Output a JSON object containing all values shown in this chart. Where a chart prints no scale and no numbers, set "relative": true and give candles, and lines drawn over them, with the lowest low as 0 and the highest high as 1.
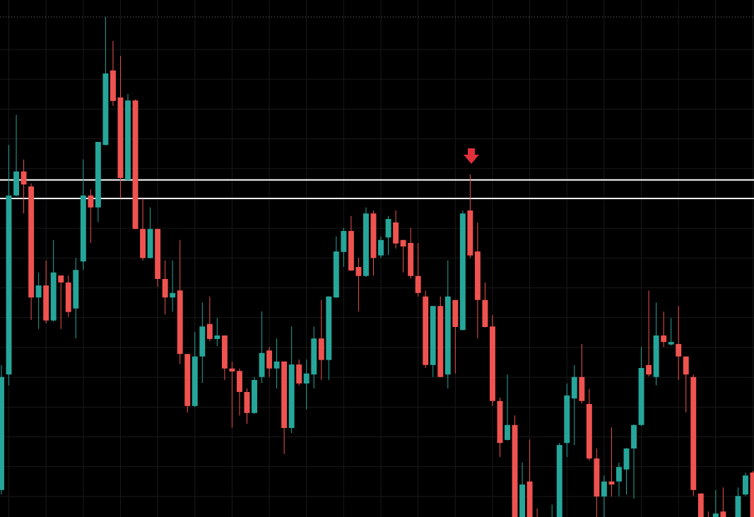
{
  "chart_data": {
    "type": "candlestick",
    "relative": true,
    "grid": true,
    "categories": [
      null,
      null,
      null,
      null,
      null,
      null,
      null,
      null,
      null,
      null,
      null,
      null,
      null,
      null,
      null,
      null,
      null,
      null,
      null,
      null,
      null,
      null,
      null,
      null,
      null,
      null,
      null,
      null,
      null,
      null,
      null,
      null,
      null,
      null,
      null,
      null,
      null,
      null,
      null,
      null,
      null,
      null,
      null,
      null,
      null,
      null,
      null,
      null,
      null,
      null,
      null,
      null,
      null,
      null,
      null,
      null,
      null,
      null,
      null,
      null,
      null,
      null,
      null,
      null,
      null,
      null,
      null,
      null,
      null,
      null,
      null,
      null,
      null,
      null,
      null,
      null,
      null,
      null,
      null,
      null,
      null,
      null,
      null,
      null,
      null,
      null,
      null,
      null,
      null,
      null,
      null,
      null,
      null,
      null,
      null,
      null,
      null,
      null,
      null,
      null,
      null,
      null
    ],
    "ohlc": [
      [
        0.054,
        0.304,
        0.045,
        0.28
      ],
      [
        0.285,
        0.744,
        0.263,
        0.643
      ],
      [
        0.643,
        0.804,
        0.641,
        0.691
      ],
      [
        0.691,
        0.715,
        0.607,
        0.665
      ],
      [
        0.661,
        0.667,
        0.394,
        0.439
      ],
      [
        0.439,
        0.489,
        0.376,
        0.463
      ],
      [
        0.463,
        0.513,
        0.387,
        0.393
      ],
      [
        0.393,
        0.554,
        0.391,
        0.489
      ],
      [
        0.483,
        0.483,
        0.376,
        0.469
      ],
      [
        0.469,
        0.483,
        0.4,
        0.41
      ],
      [
        0.417,
        0.518,
        0.357,
        0.494
      ],
      [
        0.511,
        0.715,
        0.494,
        0.643
      ],
      [
        0.643,
        0.655,
        0.548,
        0.619
      ],
      [
        0.619,
        0.75,
        0.59,
        0.75
      ],
      [
        0.744,
        1.0,
        0.743,
        0.887
      ],
      [
        0.893,
        0.952,
        0.822,
        0.832
      ],
      [
        0.839,
        0.922,
        0.637,
        0.678
      ],
      [
        0.674,
        0.846,
        0.672,
        0.833
      ],
      [
        0.833,
        0.835,
        0.576,
        0.576
      ],
      [
        0.576,
        0.637,
        0.513,
        0.518
      ],
      [
        0.518,
        0.619,
        0.517,
        0.576
      ],
      [
        0.576,
        0.576,
        0.46,
        0.476
      ],
      [
        0.476,
        0.513,
        0.405,
        0.439
      ],
      [
        0.439,
        0.513,
        0.411,
        0.448
      ],
      [
        0.453,
        0.554,
        0.306,
        0.326
      ],
      [
        0.326,
        0.326,
        0.209,
        0.222
      ],
      [
        0.222,
        0.37,
        0.22,
        0.321
      ],
      [
        0.321,
        0.429,
        0.268,
        0.381
      ],
      [
        0.386,
        0.441,
        0.352,
        0.356
      ],
      [
        0.356,
        0.398,
        0.342,
        0.363
      ],
      [
        0.363,
        0.363,
        0.274,
        0.297
      ],
      [
        0.297,
        0.311,
        0.179,
        0.291
      ],
      [
        0.292,
        0.297,
        0.203,
        0.25
      ],
      [
        0.25,
        0.257,
        0.186,
        0.208
      ],
      [
        0.208,
        0.28,
        0.206,
        0.274
      ],
      [
        0.28,
        0.411,
        0.268,
        0.328
      ],
      [
        0.333,
        0.34,
        0.28,
        0.297
      ],
      [
        0.297,
        0.357,
        0.257,
        0.311
      ],
      [
        0.311,
        0.311,
        0.126,
        0.178
      ],
      [
        0.178,
        0.381,
        0.168,
        0.305
      ],
      [
        0.305,
        0.315,
        0.263,
        0.267
      ],
      [
        0.267,
        0.315,
        0.215,
        0.287
      ],
      [
        0.285,
        0.381,
        0.257,
        0.357
      ],
      [
        0.357,
        0.434,
        0.274,
        0.314
      ],
      [
        0.314,
        0.441,
        0.274,
        0.441
      ],
      [
        0.439,
        0.561,
        0.438,
        0.531
      ],
      [
        0.53,
        0.578,
        0.5,
        0.572
      ],
      [
        0.572,
        0.602,
        0.492,
        0.493
      ],
      [
        0.5,
        0.518,
        0.411,
        0.482
      ],
      [
        0.482,
        0.619,
        0.48,
        0.607
      ],
      [
        0.607,
        0.613,
        0.483,
        0.518
      ],
      [
        0.523,
        0.561,
        0.518,
        0.554
      ],
      [
        0.559,
        0.602,
        0.524,
        0.596
      ],
      [
        0.589,
        0.613,
        0.537,
        0.547
      ],
      [
        0.554,
        0.554,
        0.489,
        0.541
      ],
      [
        0.548,
        0.578,
        0.477,
        0.482
      ],
      [
        0.482,
        0.548,
        0.441,
        0.448
      ],
      [
        0.441,
        0.453,
        0.298,
        0.304
      ],
      [
        0.304,
        0.422,
        0.28,
        0.422
      ],
      [
        0.422,
        0.441,
        0.28,
        0.28
      ],
      [
        0.285,
        0.513,
        0.257,
        0.441
      ],
      [
        0.434,
        0.434,
        0.287,
        0.38
      ],
      [
        0.374,
        0.613,
        0.373,
        0.607
      ],
      [
        0.613,
        0.685,
        0.518,
        0.523
      ],
      [
        0.531,
        0.589,
        0.357,
        0.434
      ],
      [
        0.434,
        0.469,
        0.379,
        0.38
      ],
      [
        0.381,
        0.404,
        0.222,
        0.232
      ],
      [
        0.232,
        0.239,
        0.12,
        0.148
      ],
      [
        0.154,
        0.285,
        0.153,
        0.184
      ],
      [
        0.184,
        0.203,
        0,
        0
      ],
      [
        0,
        0.109,
        0,
        0.065
      ],
      [
        0.071,
        0.155,
        0,
        0
      ],
      [
        0,
        0.017,
        0,
        0
      ],
      null,
      [
        0,
        0.025,
        0,
        0
      ],
      [
        0,
        0.148,
        0,
        0.144
      ],
      [
        0.148,
        0.267,
        0.12,
        0.243
      ],
      [
        0.237,
        0.304,
        0.144,
        0.28
      ],
      [
        0.28,
        0.346,
        0.227,
        0.232
      ],
      [
        0.226,
        0.256,
        0.113,
        0.117
      ],
      [
        0.117,
        0.137,
        0,
        0.041
      ],
      [
        0.041,
        0.083,
        0,
        0.071
      ],
      [
        0.071,
        0.179,
        0.041,
        0.065
      ],
      [
        0.071,
        0.109,
        0.041,
        0.1
      ],
      [
        0.095,
        0.138,
        0.045,
        0.137
      ],
      [
        0.137,
        0.185,
        0.037,
        0.184
      ],
      [
        0.184,
        0.34,
        0.182,
        0.298
      ],
      [
        0.304,
        0.453,
        0.281,
        0.285
      ],
      [
        0.28,
        0.429,
        0.263,
        0.363
      ],
      [
        0.363,
        0.411,
        0.34,
        0.35
      ],
      [
        0.345,
        0.398,
        0.343,
        0.35
      ],
      [
        0.346,
        0.422,
        0.274,
        0.321
      ],
      [
        0.321,
        0.321,
        0.209,
        0.285
      ],
      [
        0.28,
        0.285,
        0.042,
        0.054
      ],
      [
        0.047,
        0.047,
        0,
        0
      ],
      [
        0,
        0.011,
        0,
        0
      ],
      [
        0,
        0.054,
        0,
        0.007
      ],
      [
        0.011,
        0.059,
        0,
        0
      ],
      null,
      [
        0,
        0.059,
        0,
        0.042
      ],
      [
        0.045,
        0.089,
        0.042,
        0.083
      ],
      [
        0.089,
        0.092,
        0,
        0
      ]
    ],
    "colors": [
      "#26a69a",
      "#26a69a",
      "#26a69a",
      "#ef5350",
      "#ef5350",
      "#26a69a",
      "#ef5350",
      "#26a69a",
      "#ef5350",
      "#ef5350",
      "#26a69a",
      "#26a69a",
      "#ef5350",
      "#26a69a",
      "#26a69a",
      "#ef5350",
      "#ef5350",
      "#26a69a",
      "#ef5350",
      "#ef5350",
      "#26a69a",
      "#ef5350",
      "#ef5350",
      "#26a69a",
      "#ef5350",
      "#ef5350",
      "#26a69a",
      "#26a69a",
      "#ef5350",
      "#26a69a",
      "#ef5350",
      "#ef5350",
      "#ef5350",
      "#ef5350",
      "#26a69a",
      "#26a69a",
      "#ef5350",
      "#26a69a",
      "#ef5350",
      "#26a69a",
      "#ef5350",
      "#26a69a",
      "#26a69a",
      "#ef5350",
      "#26a69a",
      "#26a69a",
      "#26a69a",
      "#ef5350",
      "#ef5350",
      "#26a69a",
      "#ef5350",
      "#26a69a",
      "#26a69a",
      "#ef5350",
      "#ef5350",
      "#ef5350",
      "#ef5350",
      "#ef5350",
      "#26a69a",
      "#ef5350",
      "#26a69a",
      "#ef5350",
      "#26a69a",
      "#ef5350",
      "#ef5350",
      "#ef5350",
      "#ef5350",
      "#ef5350",
      "#26a69a",
      "#ef5350",
      "#26a69a",
      "#ef5350",
      "#ef5350",
      null,
      "#26a69a",
      "#26a69a",
      "#26a69a",
      "#26a69a",
      "#ef5350",
      "#ef5350",
      "#ef5350",
      "#26a69a",
      "#ef5350",
      "#26a69a",
      "#26a69a",
      "#26a69a",
      "#26a69a",
      "#ef5350",
      "#26a69a",
      "#ef5350",
      "#26a69a",
      "#ef5350",
      "#ef5350",
      "#ef5350",
      "#ef5350",
      "#ef5350",
      "#26a69a",
      "#ef5350",
      null,
      "#26a69a",
      "#26a69a",
      "#ef5350"
    ],
    "ref_lines": [
      {
        "axis": "y",
        "value": 1,
        "color": "#787b86",
        "line_style": "dotted"
      },
      {
        "axis": "y",
        "value": 0.674,
        "color": "#ffffff",
        "line_style": "solid"
      },
      {
        "axis": "y",
        "value": 0.637,
        "color": "#ffffff",
        "line_style": "solid"
      }
    ]
  }
}
